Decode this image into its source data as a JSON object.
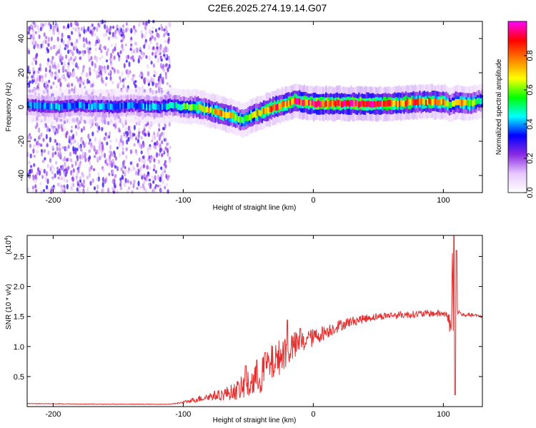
{
  "title": "C2E6.2025.274.19.14.G07",
  "chart_data": [
    {
      "type": "heatmap",
      "title": "C2E6.2025.274.19.14.G07",
      "xlabel": "Height of straight line (km)",
      "ylabel": "Frequency (Hz)",
      "xlim": [
        -220,
        130
      ],
      "ylim": [
        -50,
        50
      ],
      "x_ticks": [
        -200,
        -100,
        0,
        100
      ],
      "x_tick_labels": [
        "-200",
        "-100",
        "0",
        "100"
      ],
      "y_ticks": [
        -40,
        -20,
        0,
        20,
        40
      ],
      "y_tick_labels": [
        "-40",
        "-20",
        "0",
        "20",
        "40"
      ],
      "colorbar": {
        "label": "Normalized spectral amplitude",
        "range": [
          0,
          1
        ],
        "ticks": [
          0.0,
          0.2,
          0.4,
          0.6,
          0.8
        ],
        "tick_labels": [
          "0.0",
          "0.2",
          "0.4",
          "0.6",
          "0.8"
        ],
        "colors": [
          "#ffffff",
          "#e8c8ff",
          "#8a2be2",
          "#0000ff",
          "#00ffff",
          "#00ff00",
          "#ffff00",
          "#ff8000",
          "#ff0000",
          "#ff00ff"
        ]
      },
      "ridge": {
        "x": [
          -220,
          -200,
          -180,
          -160,
          -140,
          -120,
          -110,
          -100,
          -90,
          -80,
          -70,
          -60,
          -55,
          -50,
          -40,
          -30,
          -20,
          -15,
          -10,
          0,
          10,
          20,
          40,
          60,
          80,
          90,
          100,
          105,
          110,
          120,
          130
        ],
        "freq": [
          1,
          0,
          1,
          0,
          1,
          0,
          1,
          0,
          0,
          -2,
          -4,
          -6,
          -8,
          -6,
          -3,
          0,
          2,
          4,
          3,
          2,
          2,
          2,
          2,
          2,
          3,
          3,
          3,
          1,
          3,
          2,
          4
        ],
        "amplitude": [
          0.4,
          0.45,
          0.4,
          0.45,
          0.4,
          0.45,
          0.5,
          0.6,
          0.7,
          0.75,
          0.8,
          0.7,
          0.6,
          0.7,
          0.85,
          0.9,
          0.9,
          0.95,
          0.95,
          0.95,
          0.95,
          0.95,
          0.95,
          0.9,
          0.85,
          0.85,
          0.85,
          0.6,
          0.8,
          0.7,
          0.5
        ]
      },
      "noise_region_x": [
        -220,
        -110
      ],
      "noise_region_freq": [
        -50,
        50
      ]
    },
    {
      "type": "line",
      "xlabel": "Height of straight line (km)",
      "ylabel": "SNR (10 * v/v)",
      "y_scale_label": "(x10",
      "y_scale_exp": "4",
      "xlim": [
        -220,
        130
      ],
      "ylim": [
        0,
        2.85
      ],
      "x_ticks": [
        -200,
        -100,
        0,
        100
      ],
      "x_tick_labels": [
        "-200",
        "-100",
        "0",
        "100"
      ],
      "y_ticks": [
        0.5,
        1.0,
        1.5,
        2.0,
        2.5
      ],
      "y_tick_labels": [
        "0.5",
        "1.0",
        "1.5",
        "2.0",
        "2.5"
      ],
      "color": "#e03030",
      "series": [
        {
          "name": "SNR",
          "x": [
            -220,
            -150,
            -110,
            -100,
            -90,
            -80,
            -70,
            -60,
            -50,
            -45,
            -40,
            -35,
            -30,
            -25,
            -20,
            -10,
            0,
            10,
            20,
            30,
            40,
            50,
            60,
            70,
            80,
            90,
            100,
            104,
            106,
            107,
            108,
            109,
            110,
            115,
            120,
            130
          ],
          "y": [
            0.05,
            0.04,
            0.04,
            0.07,
            0.12,
            0.17,
            0.2,
            0.26,
            0.35,
            0.45,
            0.55,
            0.65,
            0.75,
            0.85,
            0.95,
            1.05,
            1.15,
            1.25,
            1.35,
            1.42,
            1.47,
            1.5,
            1.52,
            1.53,
            1.54,
            1.55,
            1.55,
            1.5,
            1.2,
            2.7,
            0.3,
            2.5,
            1.6,
            1.52,
            1.53,
            1.5
          ],
          "noise_amplitude": [
            0,
            0,
            0,
            0.02,
            0.05,
            0.07,
            0.1,
            0.15,
            0.25,
            0.3,
            0.35,
            0.35,
            0.3,
            0.3,
            0.3,
            0.2,
            0.15,
            0.12,
            0.1,
            0.08,
            0.07,
            0.06,
            0.06,
            0.06,
            0.06,
            0.06,
            0.06,
            0.1,
            0.2,
            0,
            0,
            0,
            0.05,
            0.03,
            0.03,
            0.02
          ],
          "spikes": [
            {
              "x": -52,
              "y": 0.68
            },
            {
              "x": -37,
              "y": 0.9
            },
            {
              "x": -20,
              "y": 1.44
            },
            {
              "x": -10,
              "y": 1.3
            },
            {
              "x": -3,
              "y": 1.2
            },
            {
              "x": 108,
              "y": 2.85
            },
            {
              "x": 109,
              "y": 0.2
            },
            {
              "x": 110,
              "y": 2.6
            }
          ]
        }
      ]
    }
  ]
}
